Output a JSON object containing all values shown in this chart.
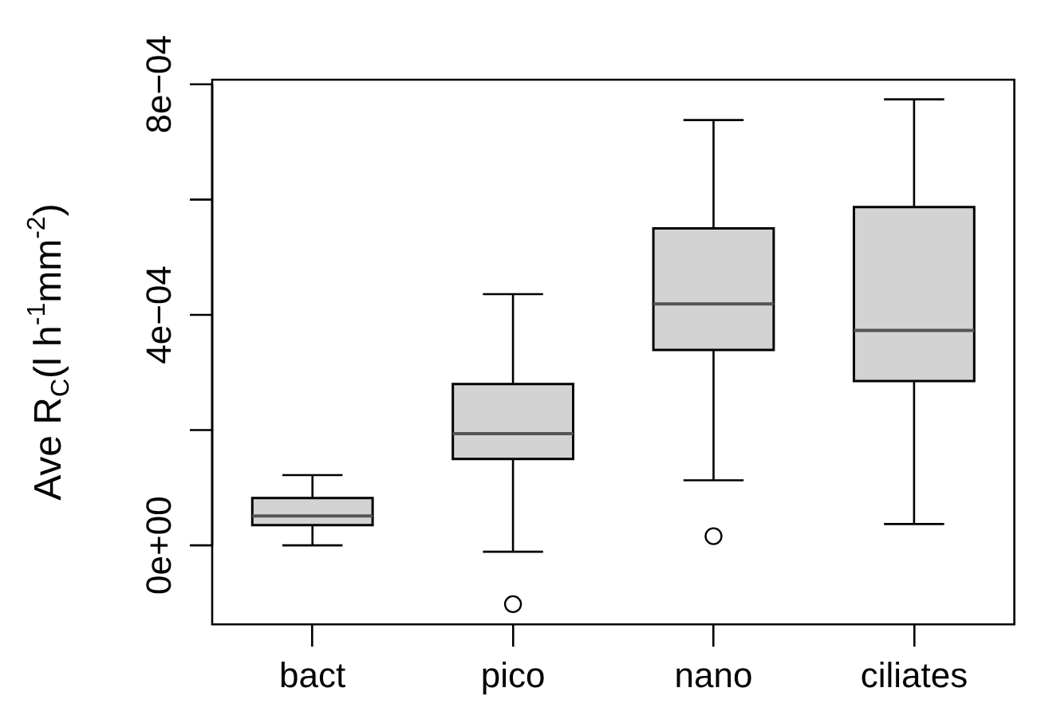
{
  "chart_data": {
    "type": "box",
    "ylabel": "Ave R$_{C}$(l h$^{-1}$mm$^{-2}$)",
    "categories": [
      "bact",
      "pico",
      "nano",
      "ciliates"
    ],
    "color": "#d3d3d3",
    "boxes": [
      {
        "low": 0,
        "q1": 3.5e-05,
        "median": 5.1e-05,
        "q3": 8.2e-05,
        "high": 0.000122
      },
      {
        "low": -1.1e-05,
        "q1": 0.00015,
        "median": 0.000194,
        "q3": 0.00028,
        "high": 0.000436,
        "outliers": [
          -0.000102
        ]
      },
      {
        "low": 0.000113,
        "q1": 0.000339,
        "median": 0.000419,
        "q3": 0.00055,
        "high": 0.000738,
        "outliers": [
          1.6e-05
        ]
      },
      {
        "low": 3.7e-05,
        "q1": 0.000285,
        "median": 0.000373,
        "q3": 0.000587,
        "high": 0.000774
      }
    ],
    "ylim": [
      -0.000137,
      0.000808
    ],
    "yticks": [
      {
        "value": 0,
        "label": "0e+00"
      },
      {
        "value": 0.0002,
        "label": null
      },
      {
        "value": 0.0004,
        "label": "4e−04"
      },
      {
        "value": 0.0006,
        "label": null
      },
      {
        "value": 0.0008,
        "label": "8e−04"
      }
    ],
    "grid": false,
    "legend": false
  }
}
